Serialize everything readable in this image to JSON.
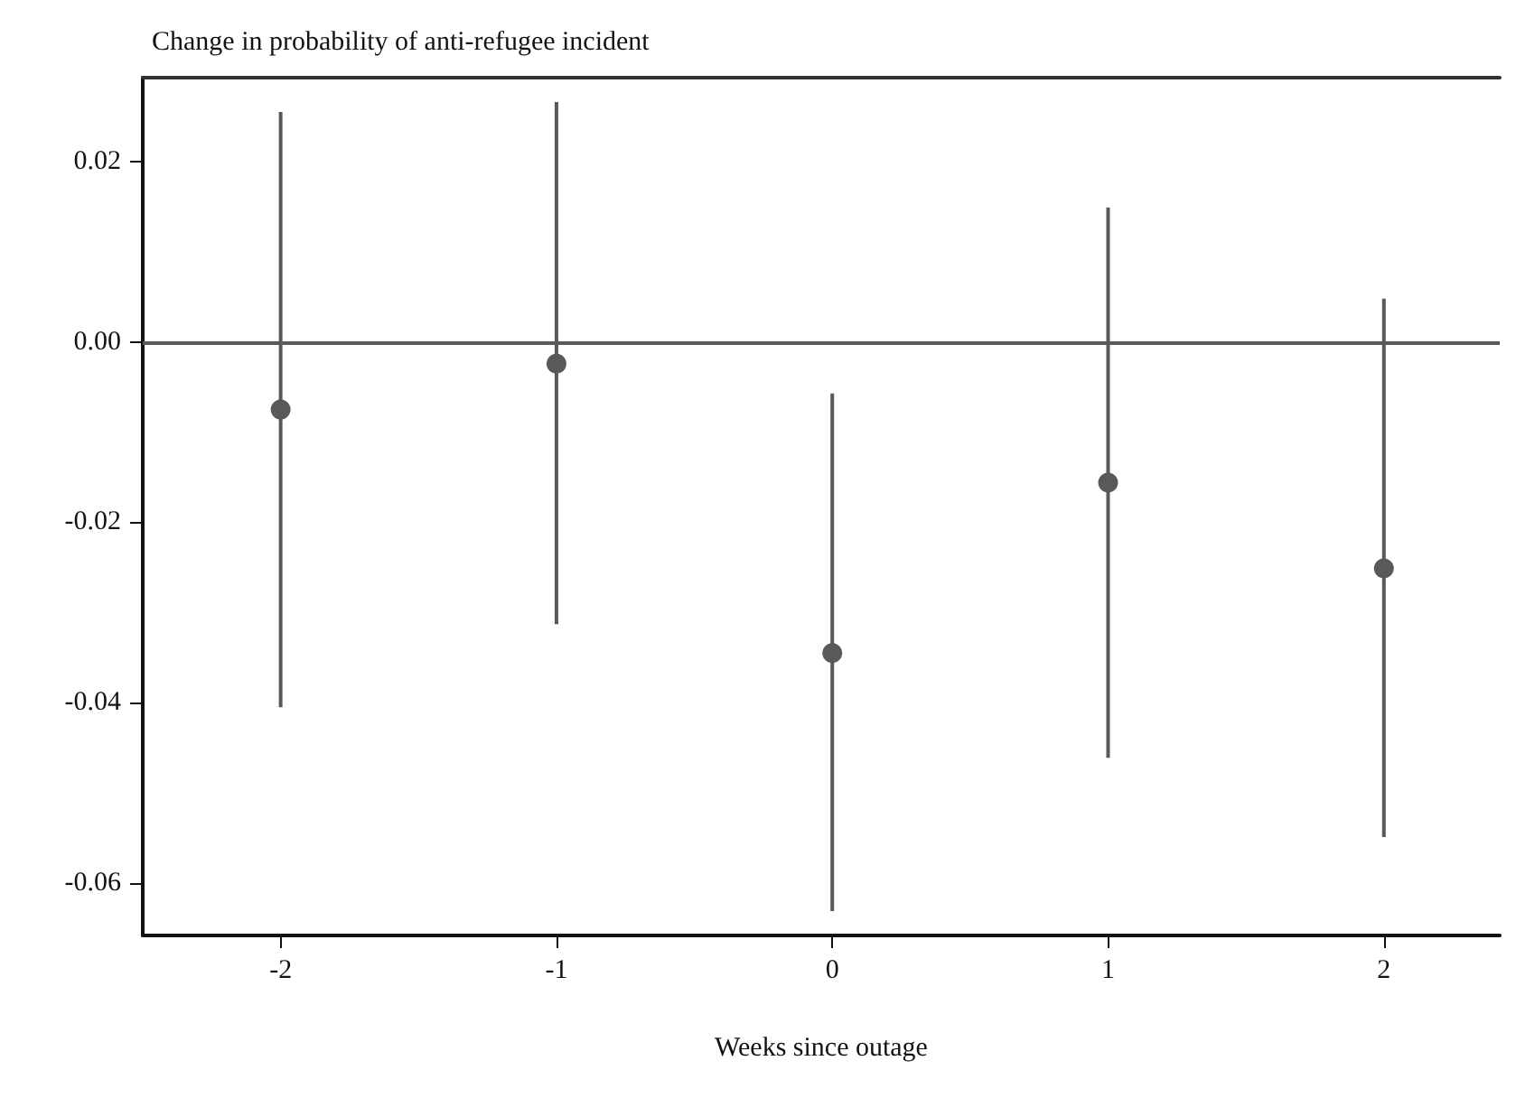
{
  "chart_data": {
    "type": "scatter",
    "ylabel": "Change in probability of anti-refugee incident",
    "xlabel": "Weeks since outage",
    "x": [
      -2,
      -1,
      0,
      1,
      2
    ],
    "values": [
      -0.0075,
      -0.0024,
      -0.0345,
      -0.0156,
      -0.0251
    ],
    "errors": [
      [
        -0.0405,
        0.0255
      ],
      [
        -0.0313,
        0.0266
      ],
      [
        -0.0631,
        -0.0057
      ],
      [
        -0.0461,
        0.0149
      ],
      [
        -0.0549,
        0.0048
      ]
    ],
    "color": "#595959",
    "marker": "circle",
    "xlim": [
      -2.5,
      2.42
    ],
    "xticks": [
      -2,
      -1,
      0,
      1,
      2
    ],
    "ylim": [
      -0.0658,
      0.0293
    ],
    "yticks": [
      -0.06,
      -0.04,
      -0.02,
      {
        "value": 0,
        "label": "0.00"
      },
      0.02
    ],
    "ref_lines": [
      {
        "axis": "y",
        "value": 0,
        "color": "#595959"
      }
    ],
    "grid": false
  }
}
